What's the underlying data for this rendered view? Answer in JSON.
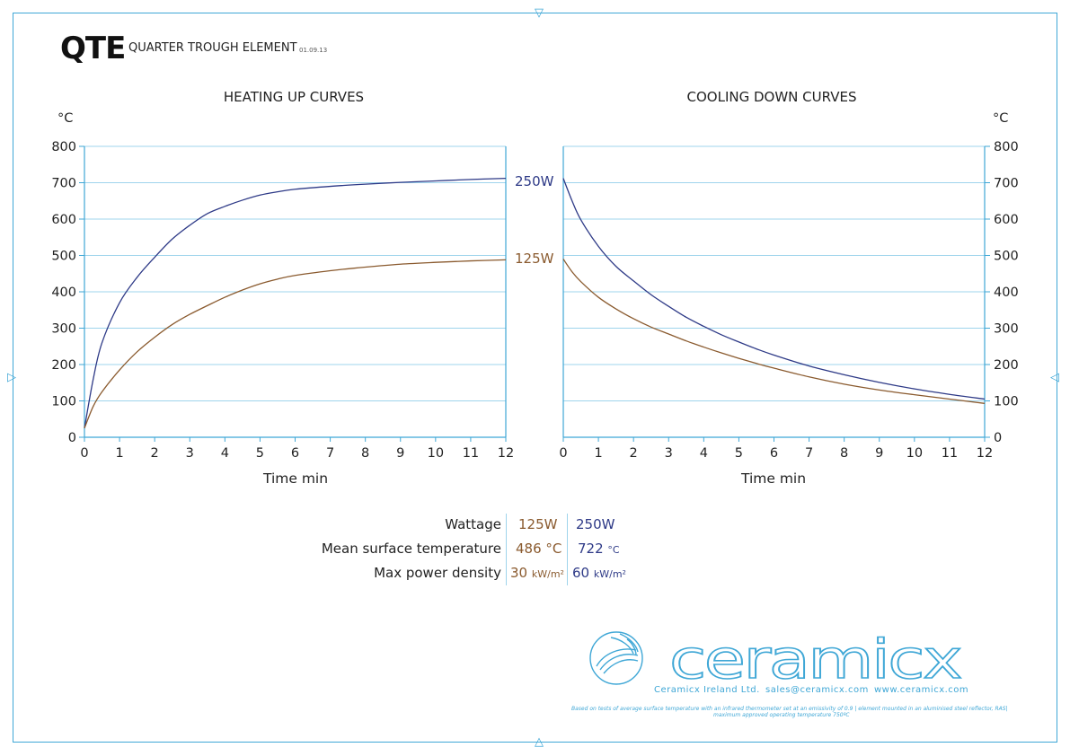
{
  "header": {
    "model": "QTE",
    "name": "QUARTER TROUGH ELEMENT",
    "date": "01.09.13"
  },
  "chart_data": [
    {
      "type": "line",
      "title": "HEATING UP CURVES",
      "xlabel": "Time min",
      "ylabel": "°C",
      "xlim": [
        0,
        12
      ],
      "ylim": [
        0,
        800
      ],
      "xticks": [
        "0",
        "1",
        "2",
        "3",
        "4",
        "5",
        "6",
        "7",
        "8",
        "9",
        "10",
        "11",
        "12"
      ],
      "yticks": [
        "0",
        "100",
        "200",
        "300",
        "400",
        "500",
        "600",
        "700",
        "800"
      ],
      "grid": true,
      "series": [
        {
          "name": "250W",
          "color": "#2e3a87",
          "x": [
            0,
            0.25,
            0.5,
            1,
            1.5,
            2,
            2.5,
            3,
            3.5,
            4,
            4.5,
            5,
            5.5,
            6,
            7,
            8,
            9,
            10,
            11,
            12
          ],
          "y": [
            25,
            160,
            260,
            370,
            440,
            495,
            545,
            583,
            615,
            635,
            652,
            666,
            675,
            682,
            690,
            696,
            701,
            705,
            709,
            712
          ]
        },
        {
          "name": "125W",
          "color": "#8a5a2e",
          "x": [
            0,
            0.25,
            0.5,
            1,
            1.5,
            2,
            2.5,
            3,
            3.5,
            4,
            4.5,
            5,
            5.5,
            6,
            7,
            8,
            9,
            10,
            11,
            12
          ],
          "y": [
            25,
            85,
            125,
            185,
            235,
            275,
            310,
            338,
            362,
            385,
            405,
            422,
            435,
            445,
            458,
            468,
            476,
            481,
            485,
            488
          ]
        }
      ]
    },
    {
      "type": "line",
      "title": "COOLING DOWN CURVES",
      "xlabel": "Time min",
      "ylabel": "°C",
      "xlim": [
        0,
        12
      ],
      "ylim": [
        0,
        800
      ],
      "xticks": [
        "0",
        "1",
        "2",
        "3",
        "4",
        "5",
        "6",
        "7",
        "8",
        "9",
        "10",
        "11",
        "12"
      ],
      "yticks": [
        "0",
        "100",
        "200",
        "300",
        "400",
        "500",
        "600",
        "700",
        "800"
      ],
      "grid": true,
      "series": [
        {
          "name": "250W",
          "color": "#2e3a87",
          "x": [
            0,
            0.25,
            0.5,
            1,
            1.5,
            2,
            2.5,
            3,
            3.5,
            4,
            4.5,
            5,
            5.5,
            6,
            7,
            8,
            9,
            10,
            11,
            12
          ],
          "y": [
            712,
            650,
            598,
            525,
            470,
            430,
            392,
            360,
            330,
            305,
            282,
            262,
            243,
            226,
            196,
            172,
            151,
            133,
            118,
            105
          ]
        },
        {
          "name": "125W",
          "color": "#8a5a2e",
          "x": [
            0,
            0.25,
            0.5,
            1,
            1.5,
            2,
            2.5,
            3,
            3.5,
            4,
            4.5,
            5,
            5.5,
            6,
            7,
            8,
            9,
            10,
            11,
            12
          ],
          "y": [
            490,
            455,
            428,
            385,
            353,
            326,
            303,
            284,
            265,
            248,
            232,
            217,
            203,
            190,
            166,
            146,
            130,
            117,
            105,
            93
          ]
        }
      ]
    }
  ],
  "specs": {
    "rows": [
      {
        "label": "Wattage",
        "v1": "125W",
        "v2": "250W",
        "u1": "",
        "u2": ""
      },
      {
        "label": "Mean surface temperature",
        "v1": "486 °C",
        "v2": "722",
        "u1": "",
        "u2": "°C"
      },
      {
        "label": "Max power density",
        "v1": "30",
        "v2": "60",
        "u1": "kW/m²",
        "u2": "kW/m²"
      }
    ]
  },
  "footer": {
    "logo_text": "ceramicx",
    "company": "Ceramicx Ireland Ltd.",
    "email": "sales@ceramicx.com",
    "website": "www.ceramicx.com",
    "footnote1": "Based on tests of average surface temperature with an infrared thermometer set at an emissivity of 0.9 | element mounted in an aluminised steel reflector, RAS|",
    "footnote2": "maximum approved operating temperature 750ºC"
  },
  "colors": {
    "frame": "#3fa7d6",
    "series_250": "#2e3a87",
    "series_125": "#8a5a2e",
    "grid": "#9fd4ec"
  }
}
